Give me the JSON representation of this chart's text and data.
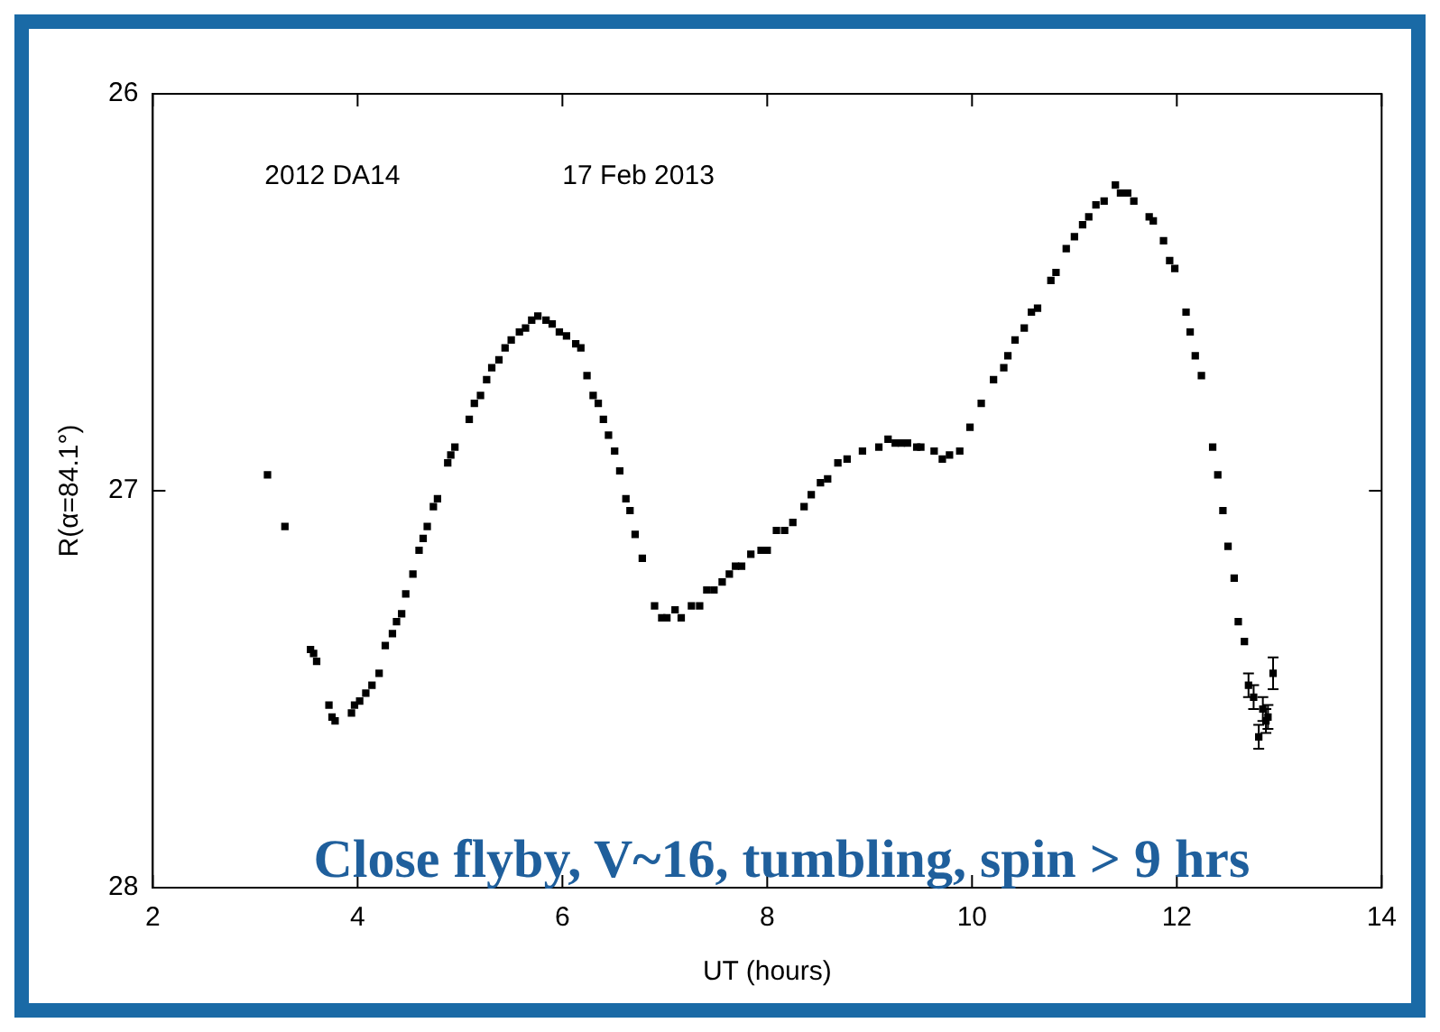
{
  "chart_data": {
    "type": "scatter",
    "xlabel": "UT (hours)",
    "ylabel": "R(α=84.1°)",
    "annotations": [
      "2012 DA14",
      "17 Feb 2013",
      "Close flyby, V~16, tumbling, spin > 9 hrs"
    ],
    "xlim": [
      2,
      14
    ],
    "xticks": [
      2,
      4,
      6,
      8,
      10,
      12,
      14
    ],
    "ylim": [
      28,
      26
    ],
    "yticks": [
      26,
      27,
      28
    ],
    "grid": false,
    "legend": false,
    "marker": "square",
    "series": [
      {
        "color": "#000000",
        "x": [
          3.12,
          3.29,
          3.54,
          3.57,
          3.6,
          3.72,
          3.75,
          3.78,
          3.94,
          3.97,
          4.02,
          4.08,
          4.14,
          4.21,
          4.27,
          4.34,
          4.38,
          4.43,
          4.47,
          4.54,
          4.6,
          4.64,
          4.68,
          4.74,
          4.78,
          4.88,
          4.91,
          4.95,
          5.09,
          5.14,
          5.2,
          5.26,
          5.31,
          5.38,
          5.44,
          5.5,
          5.58,
          5.64,
          5.7,
          5.76,
          5.84,
          5.9,
          5.97,
          6.04,
          6.13,
          6.18,
          6.24,
          6.3,
          6.35,
          6.4,
          6.45,
          6.51,
          6.56,
          6.62,
          6.66,
          6.71,
          6.78,
          6.9,
          6.97,
          7.02,
          7.1,
          7.16,
          7.26,
          7.34,
          7.41,
          7.48,
          7.56,
          7.63,
          7.69,
          7.75,
          7.84,
          7.94,
          8.0,
          8.09,
          8.17,
          8.25,
          8.36,
          8.43,
          8.52,
          8.59,
          8.69,
          8.78,
          8.93,
          9.09,
          9.18,
          9.25,
          9.31,
          9.37,
          9.46,
          9.5,
          9.63,
          9.71,
          9.78,
          9.88,
          9.98,
          10.09,
          10.21,
          10.31,
          10.35,
          10.42,
          10.51,
          10.58,
          10.64,
          10.77,
          10.82,
          10.92,
          11.0,
          11.08,
          11.14,
          11.21,
          11.29,
          11.4,
          11.45,
          11.52,
          11.58,
          11.73,
          11.77,
          11.87,
          11.93,
          11.98,
          12.09,
          12.13,
          12.18,
          12.24,
          12.35,
          12.4,
          12.45,
          12.5,
          12.56,
          12.6,
          12.66,
          12.7,
          12.75,
          12.84,
          12.89,
          12.87,
          12.8,
          12.94
        ],
        "values": [
          26.96,
          27.09,
          27.4,
          27.41,
          27.43,
          27.54,
          27.57,
          27.58,
          27.56,
          27.54,
          27.53,
          27.51,
          27.49,
          27.46,
          27.39,
          27.36,
          27.33,
          27.31,
          27.26,
          27.21,
          27.15,
          27.12,
          27.09,
          27.04,
          27.02,
          26.93,
          26.91,
          26.89,
          26.82,
          26.78,
          26.76,
          26.72,
          26.69,
          26.67,
          26.64,
          26.62,
          26.6,
          26.59,
          26.57,
          26.56,
          26.57,
          26.58,
          26.6,
          26.61,
          26.63,
          26.64,
          26.71,
          26.76,
          26.78,
          26.82,
          26.86,
          26.9,
          26.95,
          27.02,
          27.05,
          27.11,
          27.17,
          27.29,
          27.32,
          27.32,
          27.3,
          27.32,
          27.29,
          27.29,
          27.25,
          27.25,
          27.23,
          27.21,
          27.19,
          27.19,
          27.16,
          27.15,
          27.15,
          27.1,
          27.1,
          27.08,
          27.04,
          27.01,
          26.98,
          26.97,
          26.93,
          26.92,
          26.9,
          26.89,
          26.87,
          26.88,
          26.88,
          26.88,
          26.89,
          26.89,
          26.9,
          26.92,
          26.91,
          26.9,
          26.84,
          26.78,
          26.72,
          26.69,
          26.66,
          26.62,
          26.59,
          26.55,
          26.54,
          26.47,
          26.45,
          26.39,
          26.36,
          26.33,
          26.31,
          26.28,
          26.27,
          26.23,
          26.25,
          26.25,
          26.27,
          26.31,
          26.32,
          26.37,
          26.42,
          26.44,
          26.55,
          26.6,
          26.66,
          26.71,
          26.89,
          26.96,
          27.05,
          27.14,
          27.22,
          27.33,
          27.38,
          27.49,
          27.52,
          27.55,
          27.57,
          27.58,
          27.62,
          27.46
        ],
        "errors": [
          null,
          null,
          null,
          null,
          null,
          null,
          null,
          null,
          null,
          null,
          null,
          null,
          null,
          null,
          null,
          null,
          null,
          null,
          null,
          null,
          null,
          null,
          null,
          null,
          null,
          null,
          null,
          null,
          null,
          null,
          null,
          null,
          null,
          null,
          null,
          null,
          null,
          null,
          null,
          null,
          null,
          null,
          null,
          null,
          null,
          null,
          null,
          null,
          null,
          null,
          null,
          null,
          null,
          null,
          null,
          null,
          null,
          null,
          null,
          null,
          null,
          null,
          null,
          null,
          null,
          null,
          null,
          null,
          null,
          null,
          null,
          null,
          null,
          null,
          null,
          null,
          null,
          null,
          null,
          null,
          null,
          null,
          null,
          null,
          null,
          null,
          null,
          null,
          null,
          null,
          null,
          null,
          null,
          null,
          null,
          null,
          null,
          null,
          null,
          null,
          null,
          null,
          null,
          null,
          null,
          null,
          null,
          null,
          null,
          null,
          null,
          null,
          null,
          null,
          null,
          null,
          null,
          null,
          null,
          null,
          null,
          null,
          null,
          null,
          null,
          null,
          null,
          null,
          null,
          null,
          null,
          0.03,
          0.03,
          0.03,
          0.03,
          0.03,
          0.03,
          0.04
        ]
      }
    ]
  }
}
